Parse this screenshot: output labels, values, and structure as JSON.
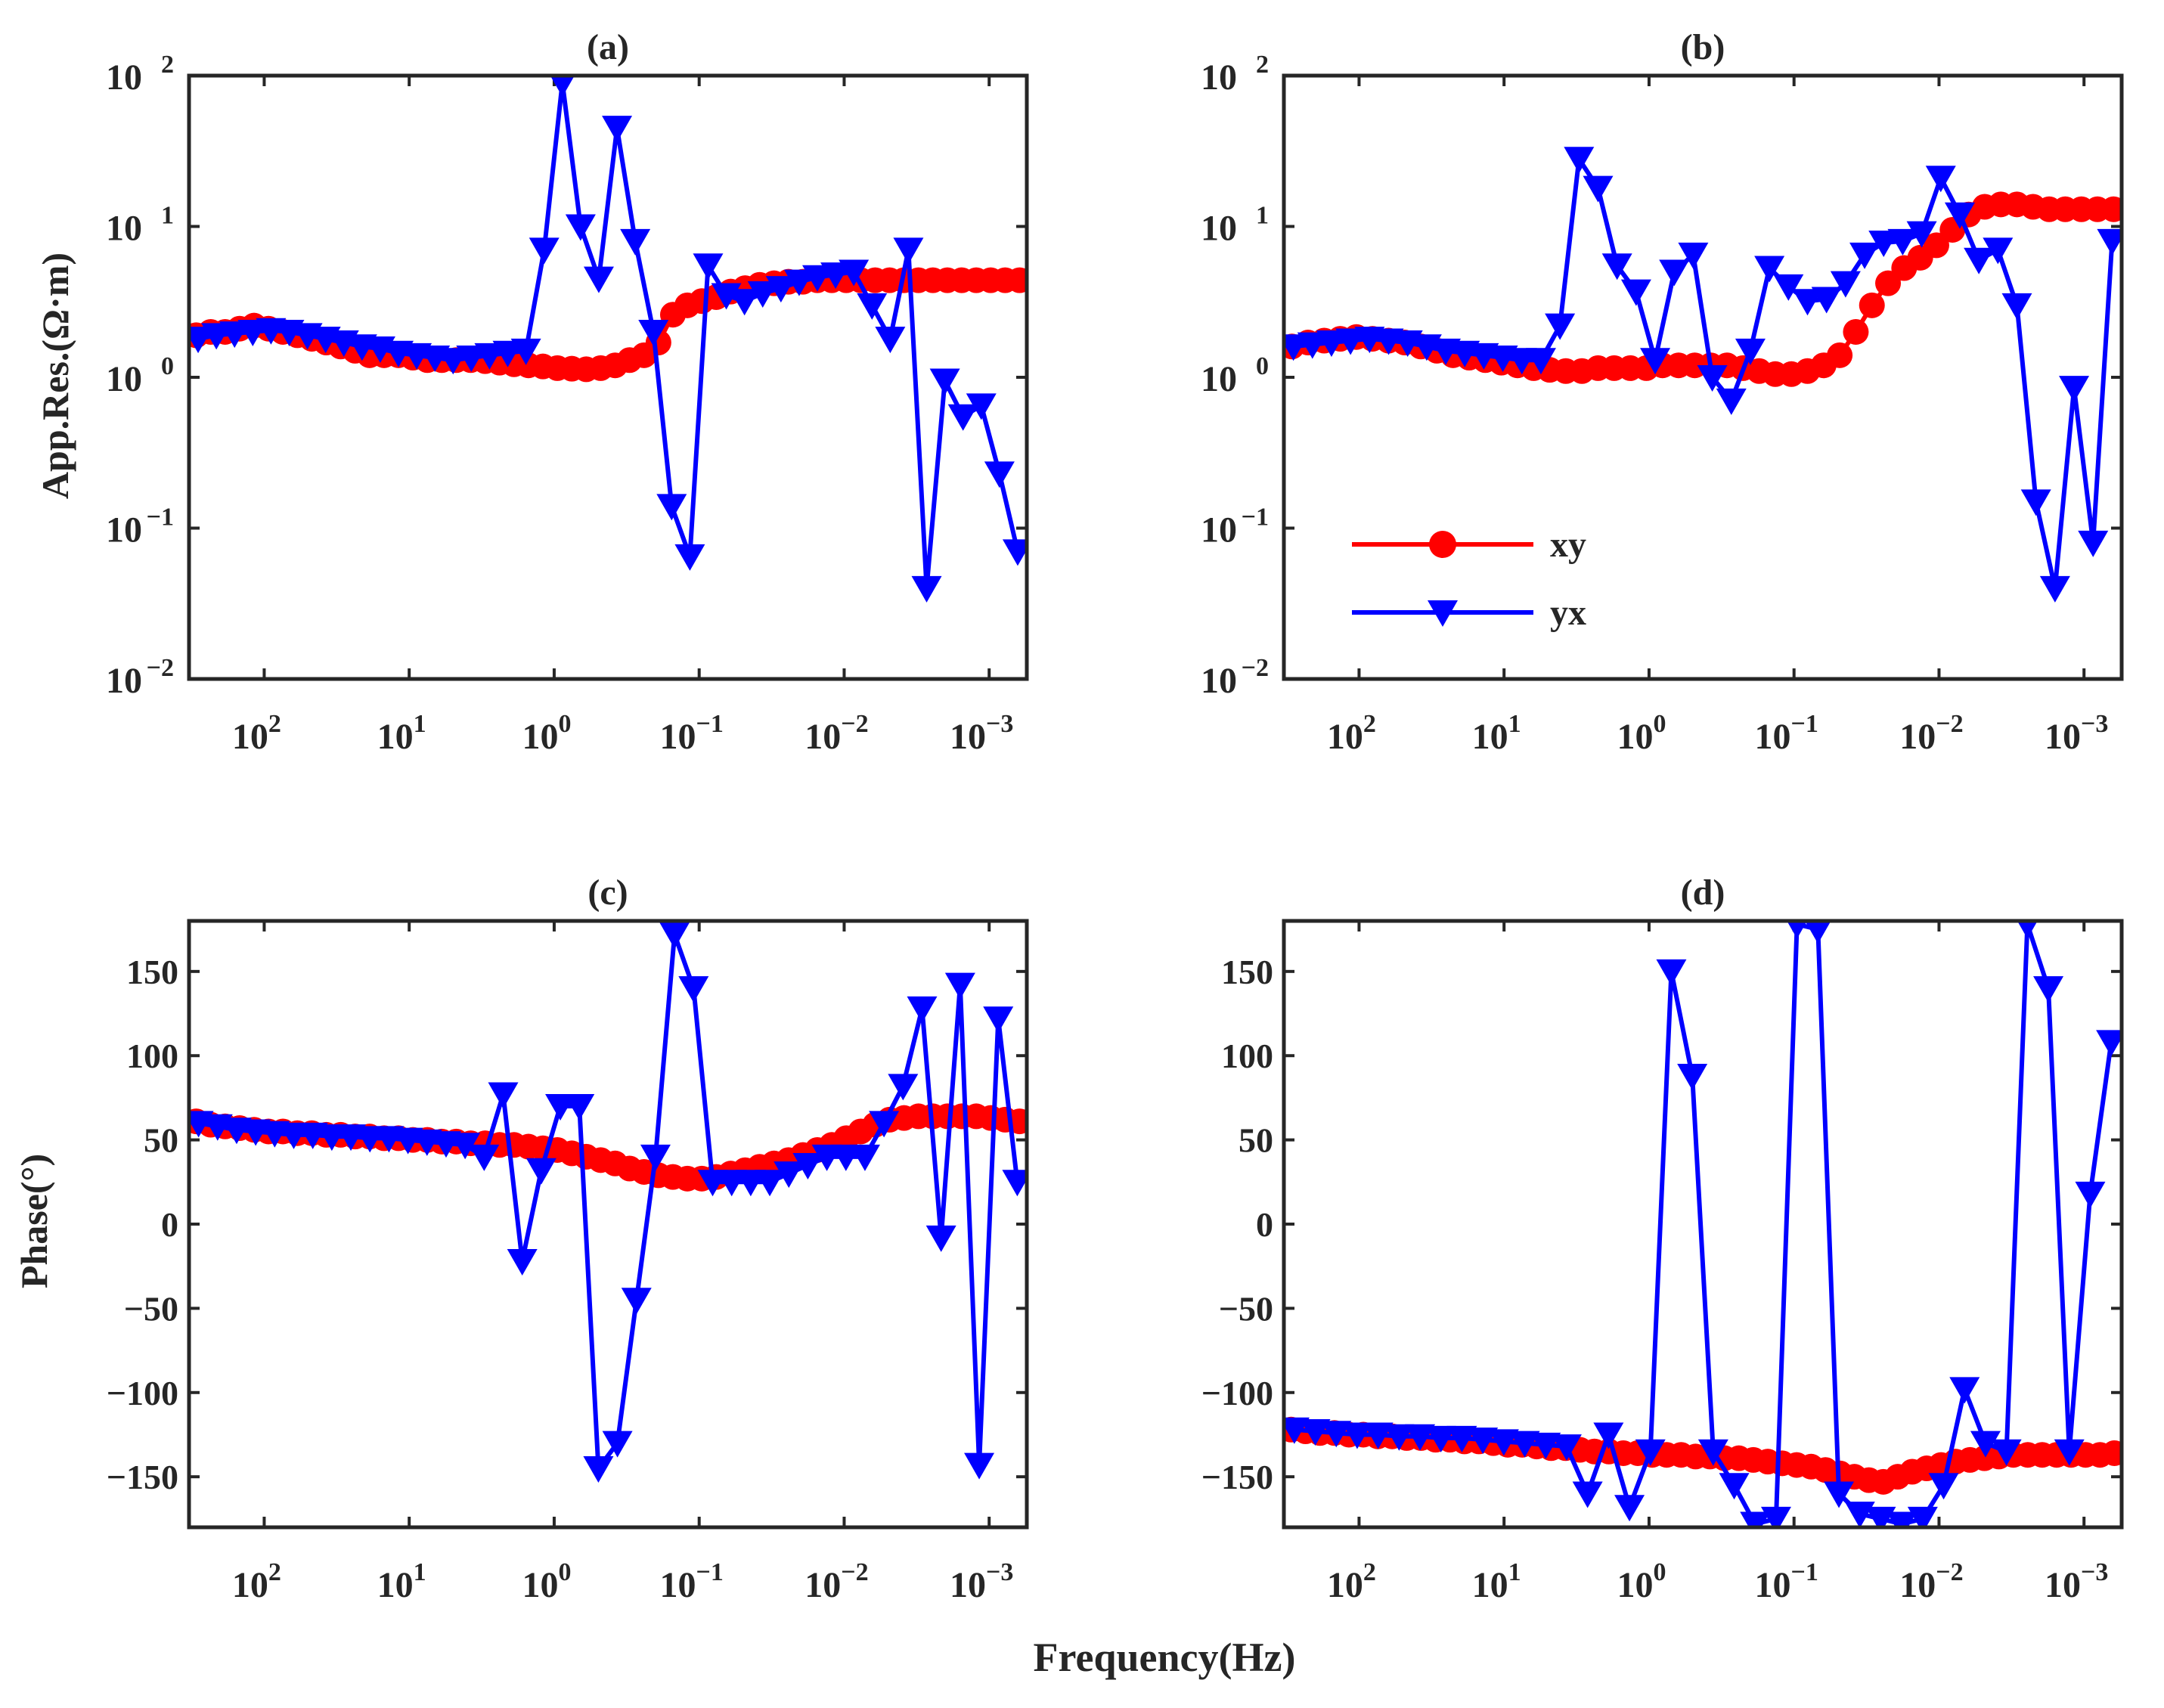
{
  "figure": {
    "xlabel": "Frequency(Hz)",
    "ylabel_top": "App.Res.(Ω·m)",
    "ylabel_bottom": "Phase(°)"
  },
  "colors": {
    "xy": "#ff0000",
    "yx": "#0000ff",
    "axis": "#262626"
  },
  "chart_data": [
    {
      "id": "a",
      "type": "line",
      "title": "(a)",
      "xlabel": "Frequency(Hz)",
      "ylabel": "App.Res.(Ω·m)",
      "xscale": "log",
      "yscale": "log",
      "xlim": [
        330,
        0.00055
      ],
      "ylim": [
        0.01,
        100
      ],
      "xticks": [
        100,
        10,
        1,
        0.1,
        0.01,
        0.001
      ],
      "xtick_labels": [
        {
          "base": "10",
          "exp": "2"
        },
        {
          "base": "10",
          "exp": "1"
        },
        {
          "base": "10",
          "exp": "0"
        },
        {
          "base": "10",
          "exp": "−1"
        },
        {
          "base": "10",
          "exp": "−2"
        },
        {
          "base": "10",
          "exp": "−3"
        }
      ],
      "yticks": [
        100,
        10,
        1,
        0.1,
        0.01
      ],
      "ytick_labels": [
        {
          "base": "10",
          "exp": "2"
        },
        {
          "base": "10",
          "exp": "1"
        },
        {
          "base": "10",
          "exp": "0"
        },
        {
          "base": "10",
          "exp": "−1"
        },
        {
          "base": "10",
          "exp": "−2"
        }
      ],
      "series": [
        {
          "name": "xy",
          "marker": "circle",
          "values": [
            1.9,
            2.0,
            2.0,
            2.1,
            2.2,
            2.1,
            2.0,
            1.9,
            1.8,
            1.7,
            1.6,
            1.5,
            1.4,
            1.4,
            1.4,
            1.35,
            1.3,
            1.3,
            1.3,
            1.3,
            1.28,
            1.25,
            1.22,
            1.2,
            1.18,
            1.15,
            1.14,
            1.13,
            1.15,
            1.2,
            1.3,
            1.4,
            1.7,
            2.6,
            3.0,
            3.2,
            3.4,
            3.7,
            3.9,
            4.1,
            4.2,
            4.3,
            4.3,
            4.4,
            4.4,
            4.4,
            4.4,
            4.4,
            4.4,
            4.4,
            4.4,
            4.4,
            4.4,
            4.4,
            4.4,
            4.4,
            4.4,
            4.4
          ]
        },
        {
          "name": "yx",
          "marker": "triangle-down",
          "values": [
            1.8,
            1.9,
            1.95,
            2.0,
            2.05,
            2.0,
            1.9,
            1.8,
            1.7,
            1.6,
            1.55,
            1.45,
            1.4,
            1.35,
            1.3,
            1.35,
            1.4,
            1.45,
            1.5,
            7.0,
            90,
            10,
            4.5,
            45,
            8,
            2.0,
            0.14,
            0.065,
            5.5,
            3.5,
            3.2,
            3.6,
            3.9,
            4.3,
            4.6,
            4.8,
            5.0,
            3.0,
            1.8,
            7.0,
            0.04,
            0.95,
            0.55,
            0.65,
            0.23,
            0.07
          ]
        }
      ]
    },
    {
      "id": "b",
      "type": "line",
      "title": "(b)",
      "xlabel": "Frequency(Hz)",
      "ylabel": "App.Res.(Ω·m)",
      "xscale": "log",
      "yscale": "log",
      "xlim": [
        330,
        0.00055
      ],
      "ylim": [
        0.01,
        100
      ],
      "xticks": [
        100,
        10,
        1,
        0.1,
        0.01,
        0.001
      ],
      "xtick_labels": [
        {
          "base": "10",
          "exp": "2"
        },
        {
          "base": "10",
          "exp": "1"
        },
        {
          "base": "10",
          "exp": "0"
        },
        {
          "base": "10",
          "exp": "−1"
        },
        {
          "base": "10",
          "exp": "−2"
        },
        {
          "base": "10",
          "exp": "−3"
        }
      ],
      "yticks": [
        100,
        10,
        1,
        0.1,
        0.01
      ],
      "ytick_labels": [
        {
          "base": "10",
          "exp": "2"
        },
        {
          "base": "10",
          "exp": "1"
        },
        {
          "base": "10",
          "exp": "0"
        },
        {
          "base": "10",
          "exp": "−1"
        },
        {
          "base": "10",
          "exp": "−2"
        }
      ],
      "legend": {
        "location": "lower-left",
        "entries": [
          "xy",
          "yx"
        ]
      },
      "series": [
        {
          "name": "xy",
          "marker": "circle",
          "values": [
            1.6,
            1.7,
            1.75,
            1.8,
            1.85,
            1.8,
            1.75,
            1.7,
            1.6,
            1.5,
            1.4,
            1.35,
            1.3,
            1.25,
            1.2,
            1.15,
            1.12,
            1.1,
            1.1,
            1.15,
            1.15,
            1.15,
            1.15,
            1.2,
            1.2,
            1.2,
            1.2,
            1.2,
            1.15,
            1.1,
            1.05,
            1.05,
            1.1,
            1.2,
            1.4,
            2.0,
            3.0,
            4.2,
            5.3,
            6.2,
            7.5,
            9.5,
            12,
            13.5,
            14,
            14,
            13.5,
            13,
            13,
            13,
            13,
            13
          ]
        },
        {
          "name": "yx",
          "marker": "triangle-down",
          "values": [
            1.6,
            1.65,
            1.7,
            1.75,
            1.8,
            1.75,
            1.7,
            1.6,
            1.5,
            1.45,
            1.4,
            1.35,
            1.3,
            1.3,
            2.2,
            28,
            18,
            5.5,
            3.7,
            1.3,
            5.0,
            6.5,
            1.0,
            0.7,
            1.5,
            5.3,
            4.0,
            3.2,
            3.3,
            4.2,
            6.5,
            7.8,
            8.0,
            9.0,
            21,
            12,
            6.0,
            7.0,
            3.0,
            0.15,
            0.04,
            0.85,
            0.08,
            8.0
          ]
        }
      ]
    },
    {
      "id": "c",
      "type": "line",
      "title": "(c)",
      "xlabel": "Frequency(Hz)",
      "ylabel": "Phase(°)",
      "xscale": "log",
      "yscale": "linear",
      "xlim": [
        330,
        0.00055
      ],
      "ylim": [
        -180,
        180
      ],
      "xticks": [
        100,
        10,
        1,
        0.1,
        0.01,
        0.001
      ],
      "xtick_labels": [
        {
          "base": "10",
          "exp": "2"
        },
        {
          "base": "10",
          "exp": "1"
        },
        {
          "base": "10",
          "exp": "0"
        },
        {
          "base": "10",
          "exp": "−1"
        },
        {
          "base": "10",
          "exp": "−2"
        },
        {
          "base": "10",
          "exp": "−3"
        }
      ],
      "yticks": [
        150,
        100,
        50,
        0,
        -50,
        -100,
        -150
      ],
      "ytick_labels": [
        "150",
        "100",
        "50",
        "0",
        "−50",
        "−100",
        "−150"
      ],
      "series": [
        {
          "name": "xy",
          "marker": "circle",
          "values": [
            61,
            59,
            58,
            57,
            56,
            55,
            55,
            54,
            54,
            53,
            53,
            52,
            52,
            51,
            51,
            50,
            50,
            49,
            49,
            48,
            48,
            47,
            47,
            46,
            45,
            44,
            42,
            40,
            38,
            36,
            33,
            31,
            29,
            28,
            27,
            27,
            28,
            30,
            32,
            34,
            36,
            38,
            41,
            44,
            47,
            51,
            55,
            59,
            62,
            63,
            64,
            64,
            64,
            64,
            64,
            63,
            62,
            61
          ]
        },
        {
          "name": "yx",
          "marker": "triangle-down",
          "values": [
            60,
            58,
            56,
            55,
            54,
            53,
            53,
            52,
            52,
            51,
            51,
            50,
            49,
            48,
            47,
            40,
            77,
            -22,
            32,
            70,
            70,
            -145,
            -130,
            -45,
            40,
            172,
            140,
            25,
            25,
            25,
            25,
            30,
            35,
            40,
            40,
            40,
            60,
            82,
            128,
            -8,
            142,
            -143,
            122,
            25
          ]
        }
      ]
    },
    {
      "id": "d",
      "type": "line",
      "title": "(d)",
      "xlabel": "Frequency(Hz)",
      "ylabel": "Phase(°)",
      "xscale": "log",
      "yscale": "linear",
      "xlim": [
        330,
        0.00055
      ],
      "ylim": [
        -180,
        180
      ],
      "xticks": [
        100,
        10,
        1,
        0.1,
        0.01,
        0.001
      ],
      "xtick_labels": [
        {
          "base": "10",
          "exp": "2"
        },
        {
          "base": "10",
          "exp": "1"
        },
        {
          "base": "10",
          "exp": "0"
        },
        {
          "base": "10",
          "exp": "−1"
        },
        {
          "base": "10",
          "exp": "−2"
        },
        {
          "base": "10",
          "exp": "−3"
        }
      ],
      "yticks": [
        150,
        100,
        50,
        0,
        -50,
        -100,
        -150
      ],
      "ytick_labels": [
        "150",
        "100",
        "50",
        "0",
        "−50",
        "−100",
        "−150"
      ],
      "series": [
        {
          "name": "xy",
          "marker": "circle",
          "values": [
            -122,
            -123,
            -124,
            -124,
            -125,
            -125,
            -126,
            -126,
            -127,
            -127,
            -128,
            -128,
            -129,
            -129,
            -130,
            -131,
            -131,
            -132,
            -133,
            -133,
            -134,
            -135,
            -135,
            -136,
            -136,
            -137,
            -137,
            -137,
            -138,
            -138,
            -139,
            -139,
            -140,
            -141,
            -142,
            -143,
            -144,
            -146,
            -148,
            -150,
            -152,
            -153,
            -150,
            -147,
            -145,
            -143,
            -141,
            -140,
            -139,
            -138,
            -137,
            -137,
            -137,
            -137,
            -137,
            -137,
            -137,
            -136
          ]
        },
        {
          "name": "yx",
          "marker": "triangle-down",
          "values": [
            -122,
            -123,
            -124,
            -125,
            -125,
            -126,
            -126,
            -127,
            -127,
            -128,
            -129,
            -130,
            -131,
            -132,
            -160,
            -125,
            -168,
            -135,
            150,
            88,
            -135,
            -155,
            -178,
            -175,
            178,
            175,
            -160,
            -172,
            -175,
            -178,
            -175,
            -155,
            -98,
            -130,
            -135,
            178,
            140,
            -135,
            18,
            108
          ]
        }
      ]
    }
  ]
}
